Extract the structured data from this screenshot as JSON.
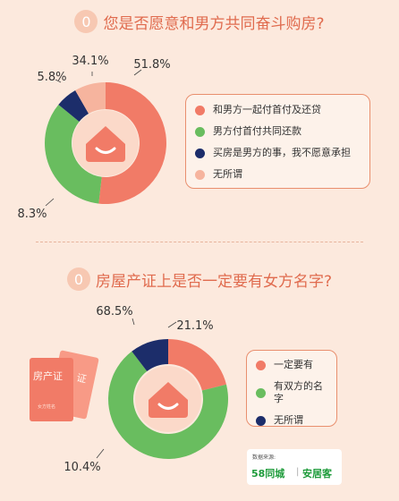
{
  "question1": {
    "number": "0",
    "title": "您是否愿意和男方共同奋斗购房?"
  },
  "question2": {
    "number": "0",
    "title": "房屋产证上是否一定要有女方名字?"
  },
  "colors": {
    "coral": "#f17b67",
    "green": "#69bd5f",
    "navy": "#1c2d6a",
    "peach": "#f6b49e",
    "icon_bg": "#fbd9c9"
  },
  "chart_data": [
    {
      "type": "pie",
      "title": "您是否愿意和男方共同奋斗购房?",
      "categories": [
        "和男方一起付首付及还贷",
        "男方付首付共同还款",
        "买房是男方的事，我不愿意承担",
        "无所谓"
      ],
      "values": [
        51.8,
        34.1,
        5.8,
        8.3
      ],
      "labels": [
        "51.8%",
        "34.1%",
        "5.8%",
        "8.3%"
      ],
      "colors": [
        "#f17b67",
        "#69bd5f",
        "#1c2d6a",
        "#f6b49e"
      ],
      "legend_position": "right"
    },
    {
      "type": "pie",
      "title": "房屋产证上是否一定要有女方名字?",
      "categories": [
        "一定要有",
        "有双方的名字",
        "无所谓"
      ],
      "values": [
        21.1,
        68.5,
        10.4
      ],
      "labels": [
        "21.1%",
        "68.5%",
        "10.4%"
      ],
      "colors": [
        "#f17b67",
        "#69bd5f",
        "#1c2d6a"
      ],
      "legend_position": "right"
    }
  ],
  "card": {
    "front_text": "房产证",
    "back_text": "证",
    "small_text": "女方姓名"
  },
  "source": {
    "label": "数据来源:",
    "brand1": "58同城",
    "separator": "|",
    "brand2": "安居客"
  }
}
